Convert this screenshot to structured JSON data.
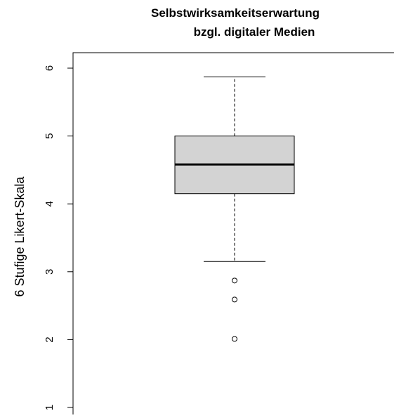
{
  "chart_data": {
    "type": "boxplot",
    "title_lines": [
      "Selbstwirksamkeitserwartung",
      "bzgl. digitaler Medien"
    ],
    "xlabel": "",
    "ylabel": "6 Stufige Likert-Skala",
    "yticks": [
      "1",
      "2",
      "3",
      "4",
      "5",
      "6"
    ],
    "ylim": [
      1,
      6
    ],
    "box": {
      "whisker_low": 3.15,
      "q1": 4.15,
      "median": 4.58,
      "q3": 5.0,
      "whisker_high": 5.87,
      "outliers": [
        2.87,
        2.59,
        2.01
      ]
    },
    "colors": {
      "box_fill": "#d3d3d3",
      "line": "#000000"
    }
  }
}
